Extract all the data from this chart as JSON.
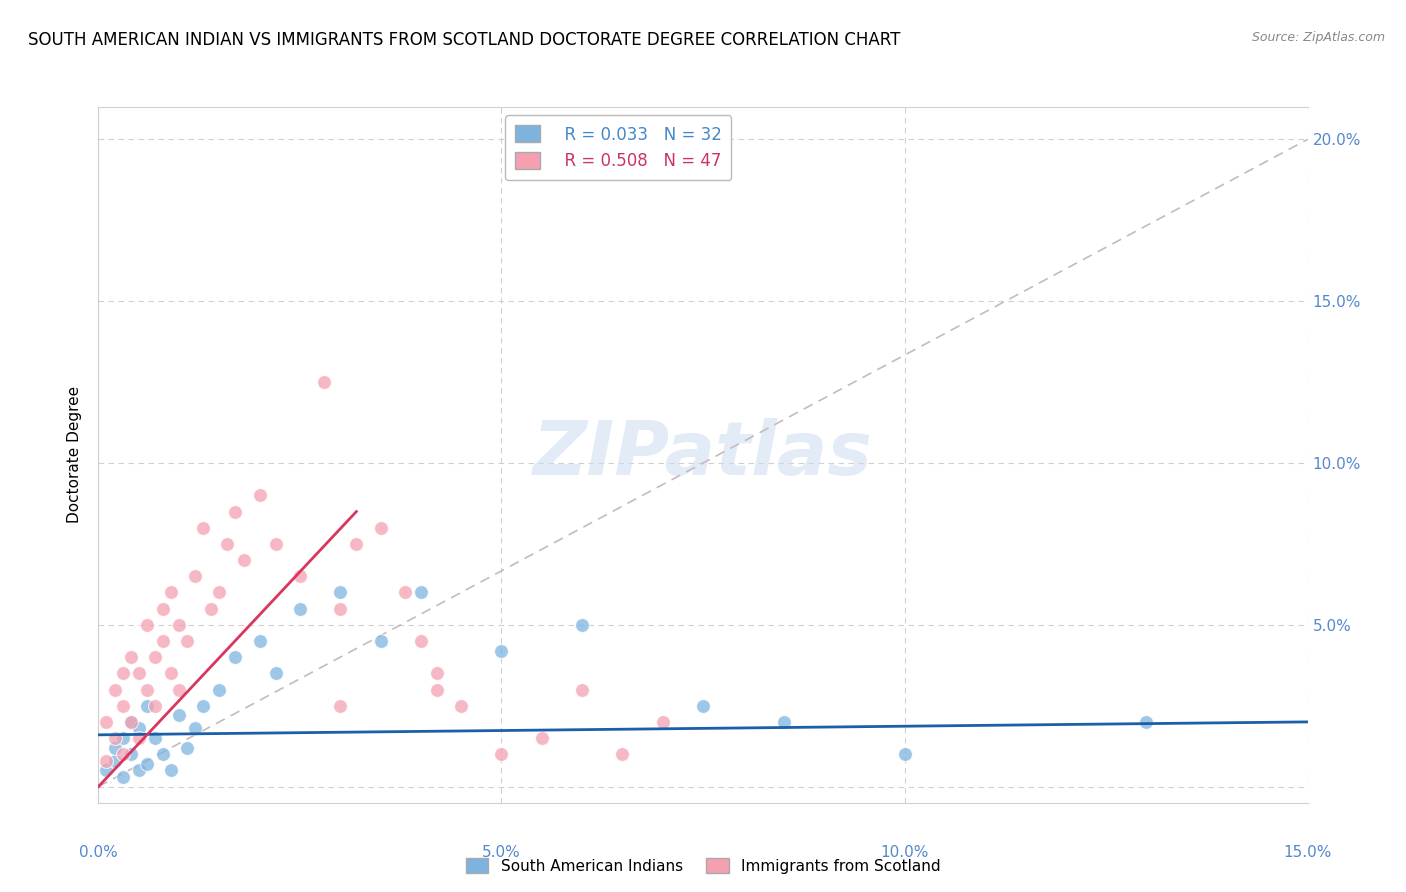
{
  "title": "SOUTH AMERICAN INDIAN VS IMMIGRANTS FROM SCOTLAND DOCTORATE DEGREE CORRELATION CHART",
  "source": "Source: ZipAtlas.com",
  "ylabel": "Doctorate Degree",
  "xlim": [
    0.0,
    0.15
  ],
  "ylim": [
    -0.005,
    0.21
  ],
  "yticks_right": [
    0.0,
    0.05,
    0.1,
    0.15,
    0.2
  ],
  "ytick_labels_right": [
    "",
    "5.0%",
    "10.0%",
    "15.0%",
    "20.0%"
  ],
  "xticks": [
    0.0,
    0.05,
    0.1,
    0.15
  ],
  "xtick_labels": [
    "0.0%",
    "5.0%",
    "10.0%",
    "15.0%"
  ],
  "grid_color": "#d0d0d0",
  "blue_color": "#7eb3e0",
  "pink_color": "#f4a0b0",
  "legend_blue_R": "R = 0.033",
  "legend_blue_N": "N = 32",
  "legend_pink_R": "R = 0.508",
  "legend_pink_N": "N = 47",
  "blue_scatter_x": [
    0.001,
    0.002,
    0.002,
    0.003,
    0.003,
    0.004,
    0.004,
    0.005,
    0.005,
    0.006,
    0.006,
    0.007,
    0.008,
    0.009,
    0.01,
    0.011,
    0.012,
    0.013,
    0.015,
    0.017,
    0.02,
    0.022,
    0.025,
    0.03,
    0.035,
    0.04,
    0.05,
    0.06,
    0.075,
    0.085,
    0.1,
    0.13
  ],
  "blue_scatter_y": [
    0.005,
    0.008,
    0.012,
    0.003,
    0.015,
    0.01,
    0.02,
    0.005,
    0.018,
    0.007,
    0.025,
    0.015,
    0.01,
    0.005,
    0.022,
    0.012,
    0.018,
    0.025,
    0.03,
    0.04,
    0.045,
    0.035,
    0.055,
    0.06,
    0.045,
    0.06,
    0.042,
    0.05,
    0.025,
    0.02,
    0.01,
    0.02
  ],
  "pink_scatter_x": [
    0.001,
    0.001,
    0.002,
    0.002,
    0.003,
    0.003,
    0.003,
    0.004,
    0.004,
    0.005,
    0.005,
    0.006,
    0.006,
    0.007,
    0.007,
    0.008,
    0.008,
    0.009,
    0.009,
    0.01,
    0.01,
    0.011,
    0.012,
    0.013,
    0.014,
    0.015,
    0.016,
    0.017,
    0.018,
    0.02,
    0.022,
    0.025,
    0.028,
    0.03,
    0.032,
    0.035,
    0.038,
    0.04,
    0.042,
    0.045,
    0.05,
    0.055,
    0.06,
    0.065,
    0.07,
    0.042,
    0.03
  ],
  "pink_scatter_y": [
    0.008,
    0.02,
    0.015,
    0.03,
    0.01,
    0.025,
    0.035,
    0.02,
    0.04,
    0.015,
    0.035,
    0.03,
    0.05,
    0.04,
    0.025,
    0.045,
    0.055,
    0.035,
    0.06,
    0.03,
    0.05,
    0.045,
    0.065,
    0.08,
    0.055,
    0.06,
    0.075,
    0.085,
    0.07,
    0.09,
    0.075,
    0.065,
    0.125,
    0.055,
    0.075,
    0.08,
    0.06,
    0.045,
    0.035,
    0.025,
    0.01,
    0.015,
    0.03,
    0.01,
    0.02,
    0.03,
    0.025
  ],
  "blue_line_x": [
    0.0,
    0.15
  ],
  "blue_line_y": [
    0.016,
    0.02
  ],
  "pink_line_x": [
    0.0,
    0.032
  ],
  "pink_line_y": [
    0.0,
    0.085
  ],
  "dashed_line_x": [
    0.0,
    0.15
  ],
  "dashed_line_y": [
    0.0,
    0.2
  ],
  "background_color": "#ffffff",
  "title_fontsize": 12,
  "axis_label_fontsize": 11,
  "tick_fontsize": 11,
  "marker_size": 100
}
